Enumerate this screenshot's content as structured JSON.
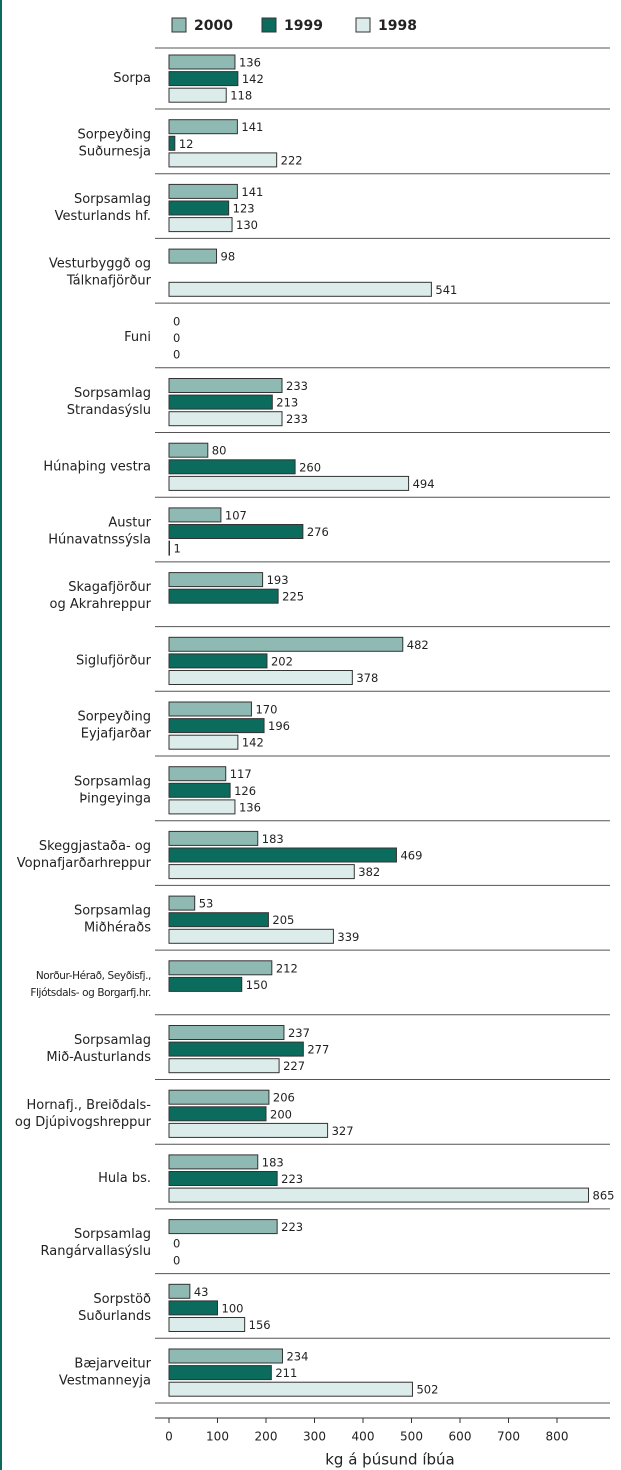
{
  "chart_data": {
    "type": "bar",
    "orientation": "horizontal",
    "categories": [
      [
        "Sorpa"
      ],
      [
        "Sorpeyðing",
        "Suðurnesja"
      ],
      [
        "Sorpsamlag",
        "Vesturlands hf."
      ],
      [
        "Vesturbyggð og",
        "Tálknafjörður"
      ],
      [
        "Funi"
      ],
      [
        "Sorpsamlag",
        "Strandasýslu"
      ],
      [
        "Húnaþing vestra"
      ],
      [
        "Austur",
        "Húnavatnssýsla"
      ],
      [
        "Skagafjörður",
        "og Akrahreppur"
      ],
      [
        "Siglufjörður"
      ],
      [
        "Sorpeyðing",
        "Eyjafjarðar"
      ],
      [
        "Sorpsamlag",
        "Þingeyinga"
      ],
      [
        "Skeggjastaða- og",
        "Vopnafjarðarhreppur"
      ],
      [
        "Sorpsamlag",
        "Miðhéraðs"
      ],
      [
        "Norður-Hérað, Seyðisfj.,",
        "Fljótsdals- og Borgarfj.hr."
      ],
      [
        "Sorpsamlag",
        "Mið-Austurlands"
      ],
      [
        "Hornafj., Breiðdals-",
        "og Djúpivogshreppur"
      ],
      [
        "Hula bs."
      ],
      [
        "Sorpsamlag",
        "Rangárvallasýslu"
      ],
      [
        "Sorpstöð",
        "Suðurlands"
      ],
      [
        "Bæjarveitur",
        "Vestmanneyja"
      ]
    ],
    "series": [
      {
        "name": "2000",
        "color": "#8fb9b3",
        "values": [
          136,
          141,
          141,
          98,
          0,
          233,
          80,
          107,
          193,
          482,
          170,
          117,
          183,
          53,
          212,
          237,
          206,
          183,
          223,
          43,
          234
        ]
      },
      {
        "name": "1999",
        "color": "#0b6b5d",
        "values": [
          142,
          12,
          123,
          null,
          0,
          213,
          260,
          276,
          225,
          202,
          196,
          126,
          469,
          205,
          150,
          277,
          200,
          223,
          0,
          100,
          211
        ]
      },
      {
        "name": "1998",
        "color": "#dcecea",
        "values": [
          118,
          222,
          130,
          541,
          0,
          233,
          494,
          1,
          null,
          378,
          142,
          136,
          382,
          339,
          null,
          227,
          327,
          865,
          0,
          156,
          502
        ]
      }
    ],
    "x_label": "kg á þúsund íbúa",
    "xlim": [
      0,
      900
    ],
    "xticks": [
      0,
      100,
      200,
      300,
      400,
      500,
      600,
      700,
      800
    ],
    "legend": "top"
  }
}
